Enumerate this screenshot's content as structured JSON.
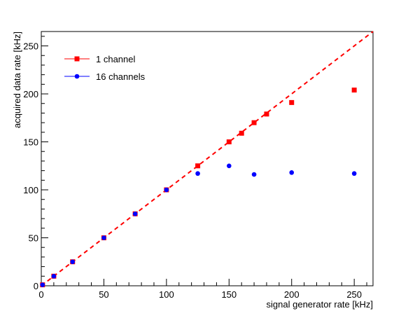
{
  "chart_data": {
    "type": "scatter",
    "xlabel": "signal generator rate [kHz]",
    "ylabel": "acquired data rate [kHz]",
    "xlim": [
      0,
      265
    ],
    "ylim": [
      0,
      265
    ],
    "x_ticks": [
      0,
      50,
      100,
      150,
      200,
      250
    ],
    "y_ticks": [
      0,
      50,
      100,
      150,
      200,
      250
    ],
    "legend_position": "top-left",
    "reference_line": {
      "from": [
        0,
        0
      ],
      "to": [
        265,
        265
      ],
      "style": "dashed",
      "color": "#ff0000"
    },
    "series": [
      {
        "name": "1 channel",
        "color": "#ff0000",
        "marker": "square",
        "x": [
          1,
          10,
          25,
          50,
          75,
          100,
          125,
          150,
          160,
          170,
          180,
          200,
          250
        ],
        "y": [
          1,
          10,
          25,
          50,
          75,
          100,
          125,
          150,
          159,
          170,
          179,
          191,
          204
        ]
      },
      {
        "name": "16 channels",
        "color": "#0000ff",
        "marker": "circle",
        "x": [
          1,
          10,
          25,
          50,
          75,
          100,
          125,
          150,
          170,
          200,
          250
        ],
        "y": [
          1,
          10,
          25,
          50,
          75,
          100,
          117,
          125,
          116,
          118,
          117
        ]
      }
    ]
  }
}
